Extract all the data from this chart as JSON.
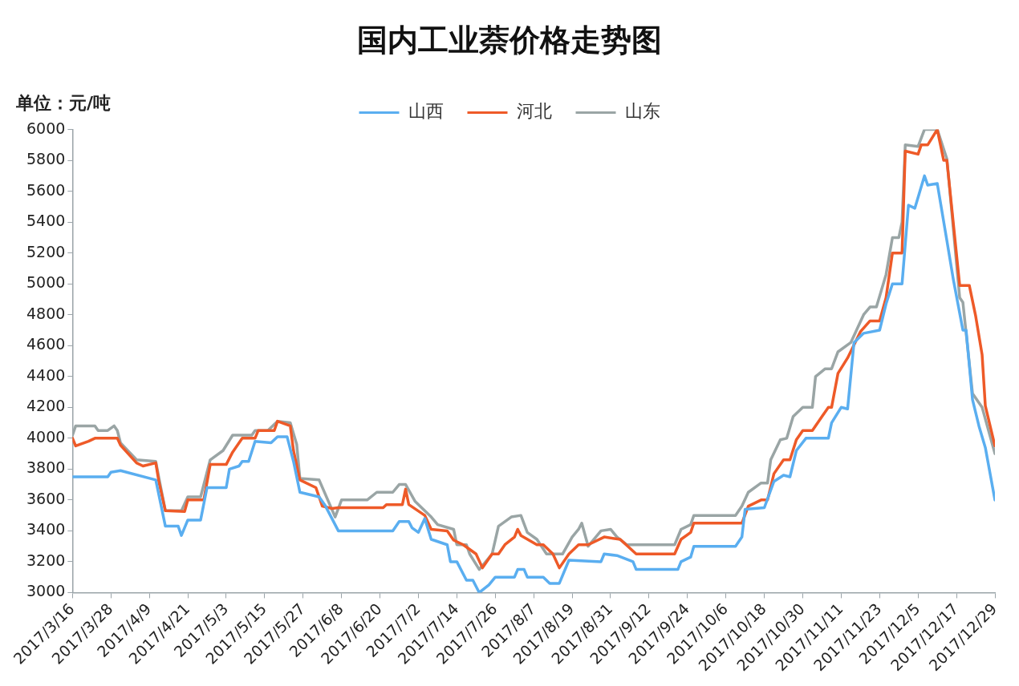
{
  "chart_data": {
    "type": "line",
    "title": "国内工业萘价格走势图",
    "annotations": [
      "单位：元/吨"
    ],
    "legend": "top",
    "grid": false,
    "xlim": [
      "2017-03-16",
      "2017-12-29"
    ],
    "xticks": [
      {
        "value": "2017-03-16",
        "label": "2017/3/16"
      },
      {
        "value": "2017-03-28",
        "label": "2017/3/28"
      },
      {
        "value": "2017-04-09",
        "label": "2017/4/9"
      },
      {
        "value": "2017-04-21",
        "label": "2017/4/21"
      },
      {
        "value": "2017-05-03",
        "label": "2017/5/3"
      },
      {
        "value": "2017-05-15",
        "label": "2017/5/15"
      },
      {
        "value": "2017-05-27",
        "label": "2017/5/27"
      },
      {
        "value": "2017-06-08",
        "label": "2017/6/8"
      },
      {
        "value": "2017-06-20",
        "label": "2017/6/20"
      },
      {
        "value": "2017-07-02",
        "label": "2017/7/2"
      },
      {
        "value": "2017-07-14",
        "label": "2017/7/14"
      },
      {
        "value": "2017-07-26",
        "label": "2017/7/26"
      },
      {
        "value": "2017-08-07",
        "label": "2017/8/7"
      },
      {
        "value": "2017-08-19",
        "label": "2017/8/19"
      },
      {
        "value": "2017-08-31",
        "label": "2017/8/31"
      },
      {
        "value": "2017-09-12",
        "label": "2017/9/12"
      },
      {
        "value": "2017-09-24",
        "label": "2017/9/24"
      },
      {
        "value": "2017-10-06",
        "label": "2017/10/6"
      },
      {
        "value": "2017-10-18",
        "label": "2017/10/18"
      },
      {
        "value": "2017-10-30",
        "label": "2017/10/30"
      },
      {
        "value": "2017-11-11",
        "label": "2017/11/11"
      },
      {
        "value": "2017-11-23",
        "label": "2017/11/23"
      },
      {
        "value": "2017-12-05",
        "label": "2017/12/5"
      },
      {
        "value": "2017-12-17",
        "label": "2017/12/17"
      },
      {
        "value": "2017-12-29",
        "label": "2017/12/29"
      }
    ],
    "ylim": [
      3000,
      6000
    ],
    "yticks": [
      3000,
      3200,
      3400,
      3600,
      3800,
      4000,
      4200,
      4400,
      4600,
      4800,
      5000,
      5200,
      5400,
      5600,
      5800,
      6000
    ],
    "series": [
      {
        "name": "山西",
        "color": "#5aaef0",
        "x": [
          "2017-03-16",
          "2017-03-27",
          "2017-03-28",
          "2017-03-31",
          "2017-04-11",
          "2017-04-14",
          "2017-04-18",
          "2017-04-19",
          "2017-04-21",
          "2017-04-25",
          "2017-04-27",
          "2017-05-03",
          "2017-05-04",
          "2017-05-07",
          "2017-05-08",
          "2017-05-10",
          "2017-05-12",
          "2017-05-17",
          "2017-05-19",
          "2017-05-22",
          "2017-05-24",
          "2017-05-26",
          "2017-06-01",
          "2017-06-03",
          "2017-06-07",
          "2017-06-24",
          "2017-06-26",
          "2017-06-29",
          "2017-06-30",
          "2017-07-02",
          "2017-07-04",
          "2017-07-06",
          "2017-07-11",
          "2017-07-12",
          "2017-07-14",
          "2017-07-17",
          "2017-07-19",
          "2017-07-21",
          "2017-07-24",
          "2017-07-26",
          "2017-08-01",
          "2017-08-02",
          "2017-08-04",
          "2017-08-05",
          "2017-08-10",
          "2017-08-12",
          "2017-08-15",
          "2017-08-18",
          "2017-08-28",
          "2017-08-29",
          "2017-09-02",
          "2017-09-07",
          "2017-09-08",
          "2017-09-21",
          "2017-09-22",
          "2017-09-25",
          "2017-09-26",
          "2017-10-09",
          "2017-10-11",
          "2017-10-12",
          "2017-10-18",
          "2017-10-21",
          "2017-10-24",
          "2017-10-26",
          "2017-10-28",
          "2017-10-31",
          "2017-11-07",
          "2017-11-08",
          "2017-11-11",
          "2017-11-13",
          "2017-11-15",
          "2017-11-18",
          "2017-11-23",
          "2017-11-25",
          "2017-11-27",
          "2017-11-30",
          "2017-12-02",
          "2017-12-04",
          "2017-12-07",
          "2017-12-08",
          "2017-12-11",
          "2017-12-14",
          "2017-12-16",
          "2017-12-19",
          "2017-12-20",
          "2017-12-22",
          "2017-12-24",
          "2017-12-26",
          "2017-12-29"
        ],
        "values": [
          3750,
          3750,
          3780,
          3790,
          3730,
          3430,
          3430,
          3370,
          3470,
          3470,
          3680,
          3680,
          3800,
          3820,
          3850,
          3850,
          3980,
          3970,
          4010,
          4010,
          3850,
          3650,
          3620,
          3560,
          3400,
          3400,
          3460,
          3460,
          3420,
          3390,
          3480,
          3345,
          3310,
          3200,
          3200,
          3080,
          3080,
          3000,
          3050,
          3100,
          3100,
          3150,
          3150,
          3100,
          3100,
          3060,
          3060,
          3210,
          3200,
          3250,
          3240,
          3200,
          3150,
          3150,
          3200,
          3230,
          3300,
          3300,
          3360,
          3540,
          3550,
          3720,
          3760,
          3750,
          3920,
          4000,
          4000,
          4100,
          4200,
          4190,
          4620,
          4680,
          4700,
          4870,
          5000,
          5000,
          5510,
          5490,
          5700,
          5640,
          5650,
          5280,
          5030,
          4700,
          4700,
          4250,
          4080,
          3940,
          3600
        ]
      },
      {
        "name": "河北",
        "color": "#ee5a28",
        "x": [
          "2017-03-16",
          "2017-03-17",
          "2017-03-21",
          "2017-03-23",
          "2017-03-30",
          "2017-03-31",
          "2017-04-05",
          "2017-04-07",
          "2017-04-11",
          "2017-04-12",
          "2017-04-14",
          "2017-04-20",
          "2017-04-21",
          "2017-04-26",
          "2017-04-28",
          "2017-05-03",
          "2017-05-05",
          "2017-05-08",
          "2017-05-12",
          "2017-05-13",
          "2017-05-18",
          "2017-05-19",
          "2017-05-23",
          "2017-05-24",
          "2017-05-26",
          "2017-05-31",
          "2017-06-02",
          "2017-06-05",
          "2017-06-07",
          "2017-06-21",
          "2017-06-22",
          "2017-06-27",
          "2017-06-28",
          "2017-06-29",
          "2017-07-04",
          "2017-07-06",
          "2017-07-11",
          "2017-07-13",
          "2017-07-16",
          "2017-07-20",
          "2017-07-22",
          "2017-07-25",
          "2017-07-27",
          "2017-07-29",
          "2017-08-01",
          "2017-08-02",
          "2017-08-03",
          "2017-08-08",
          "2017-08-10",
          "2017-08-13",
          "2017-08-15",
          "2017-08-18",
          "2017-08-21",
          "2017-08-24",
          "2017-08-29",
          "2017-09-03",
          "2017-09-08",
          "2017-09-20",
          "2017-09-22",
          "2017-09-25",
          "2017-09-26",
          "2017-10-11",
          "2017-10-13",
          "2017-10-17",
          "2017-10-19",
          "2017-10-21",
          "2017-10-24",
          "2017-10-26",
          "2017-10-28",
          "2017-10-30",
          "2017-11-02",
          "2017-11-05",
          "2017-11-07",
          "2017-11-08",
          "2017-11-10",
          "2017-11-13",
          "2017-11-17",
          "2017-11-20",
          "2017-11-23",
          "2017-11-25",
          "2017-11-27",
          "2017-11-30",
          "2017-12-01",
          "2017-12-05",
          "2017-12-06",
          "2017-12-08",
          "2017-12-11",
          "2017-12-13",
          "2017-12-14",
          "2017-12-18",
          "2017-12-21",
          "2017-12-23",
          "2017-12-25",
          "2017-12-26",
          "2017-12-29"
        ],
        "values": [
          4000,
          3950,
          3980,
          4000,
          4000,
          3955,
          3840,
          3820,
          3840,
          3715,
          3530,
          3525,
          3600,
          3600,
          3830,
          3830,
          3910,
          4000,
          4000,
          4050,
          4050,
          4110,
          4080,
          3920,
          3730,
          3680,
          3560,
          3545,
          3550,
          3550,
          3570,
          3570,
          3670,
          3570,
          3500,
          3410,
          3400,
          3340,
          3310,
          3250,
          3160,
          3250,
          3250,
          3310,
          3360,
          3410,
          3370,
          3310,
          3310,
          3250,
          3160,
          3250,
          3310,
          3310,
          3360,
          3345,
          3250,
          3250,
          3345,
          3390,
          3450,
          3450,
          3560,
          3600,
          3600,
          3770,
          3860,
          3860,
          3990,
          4050,
          4050,
          4140,
          4200,
          4200,
          4420,
          4520,
          4690,
          4760,
          4760,
          4910,
          5200,
          5200,
          5860,
          5840,
          5900,
          5900,
          6000,
          5800,
          5800,
          4990,
          4990,
          4790,
          4540,
          4210,
          3950
        ]
      },
      {
        "name": "山东",
        "color": "#9aa5a5",
        "x": [
          "2017-03-16",
          "2017-03-17",
          "2017-03-23",
          "2017-03-24",
          "2017-03-27",
          "2017-03-29",
          "2017-03-30",
          "2017-03-31",
          "2017-04-05",
          "2017-04-11",
          "2017-04-12",
          "2017-04-14",
          "2017-04-19",
          "2017-04-21",
          "2017-04-25",
          "2017-04-28",
          "2017-05-02",
          "2017-05-05",
          "2017-05-11",
          "2017-05-12",
          "2017-05-16",
          "2017-05-19",
          "2017-05-23",
          "2017-05-25",
          "2017-05-26",
          "2017-06-01",
          "2017-06-06",
          "2017-06-08",
          "2017-06-16",
          "2017-06-19",
          "2017-06-24",
          "2017-06-26",
          "2017-06-28",
          "2017-07-01",
          "2017-07-03",
          "2017-07-06",
          "2017-07-08",
          "2017-07-13",
          "2017-07-14",
          "2017-07-17",
          "2017-07-18",
          "2017-07-21",
          "2017-07-25",
          "2017-07-27",
          "2017-07-31",
          "2017-08-03",
          "2017-08-05",
          "2017-08-08",
          "2017-08-11",
          "2017-08-16",
          "2017-08-19",
          "2017-08-21",
          "2017-08-22",
          "2017-08-24",
          "2017-08-28",
          "2017-08-31",
          "2017-09-02",
          "2017-09-05",
          "2017-09-20",
          "2017-09-22",
          "2017-09-25",
          "2017-09-26",
          "2017-10-09",
          "2017-10-11",
          "2017-10-13",
          "2017-10-17",
          "2017-10-19",
          "2017-10-20",
          "2017-10-23",
          "2017-10-25",
          "2017-10-27",
          "2017-10-30",
          "2017-11-02",
          "2017-11-03",
          "2017-11-06",
          "2017-11-08",
          "2017-11-10",
          "2017-11-14",
          "2017-11-18",
          "2017-11-20",
          "2017-11-22",
          "2017-11-25",
          "2017-11-27",
          "2017-11-29",
          "2017-11-30",
          "2017-12-01",
          "2017-12-05",
          "2017-12-07",
          "2017-12-11",
          "2017-12-14",
          "2017-12-18",
          "2017-12-19",
          "2017-12-22",
          "2017-12-25",
          "2017-12-29"
        ],
        "values": [
          4020,
          4080,
          4080,
          4050,
          4050,
          4080,
          4050,
          3970,
          3860,
          3850,
          3740,
          3530,
          3530,
          3620,
          3620,
          3860,
          3920,
          4020,
          4020,
          4050,
          4050,
          4110,
          4100,
          3960,
          3740,
          3730,
          3490,
          3600,
          3600,
          3650,
          3650,
          3700,
          3700,
          3590,
          3550,
          3490,
          3440,
          3410,
          3310,
          3310,
          3250,
          3150,
          3250,
          3430,
          3490,
          3500,
          3390,
          3345,
          3250,
          3250,
          3360,
          3410,
          3450,
          3300,
          3400,
          3410,
          3360,
          3310,
          3310,
          3410,
          3440,
          3500,
          3500,
          3560,
          3650,
          3710,
          3710,
          3860,
          3990,
          4000,
          4140,
          4200,
          4200,
          4400,
          4450,
          4450,
          4560,
          4620,
          4800,
          4850,
          4850,
          5060,
          5300,
          5300,
          5400,
          5900,
          5890,
          6000,
          6000,
          5810,
          4910,
          4880,
          4290,
          4200,
          3900
        ]
      }
    ]
  }
}
